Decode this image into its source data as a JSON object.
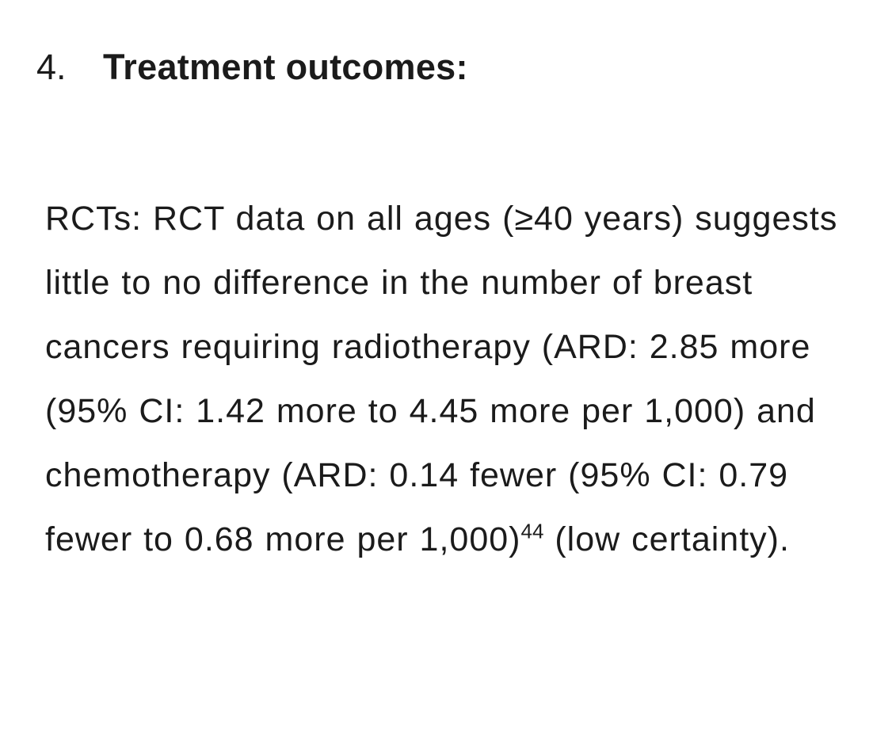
{
  "page": {
    "background_color": "#ffffff",
    "text_color": "#1b1b1b"
  },
  "list_item": {
    "number": "4.",
    "title": "Treatment outcomes:"
  },
  "paragraph": {
    "text_before_superscript": "RCTs: RCT data on all ages (≥40 years) suggests little to no difference in the number of breast cancers requiring radiotherapy (ARD: 2.85 more (95% CI: 1.42 more to 4.45 more per 1,000) and chemotherapy (ARD: 0.14 fewer (95% CI: 0.79 fewer to 0.68 more per 1,000)",
    "footnote_reference": "44",
    "text_after_superscript": " (low certainty)."
  }
}
